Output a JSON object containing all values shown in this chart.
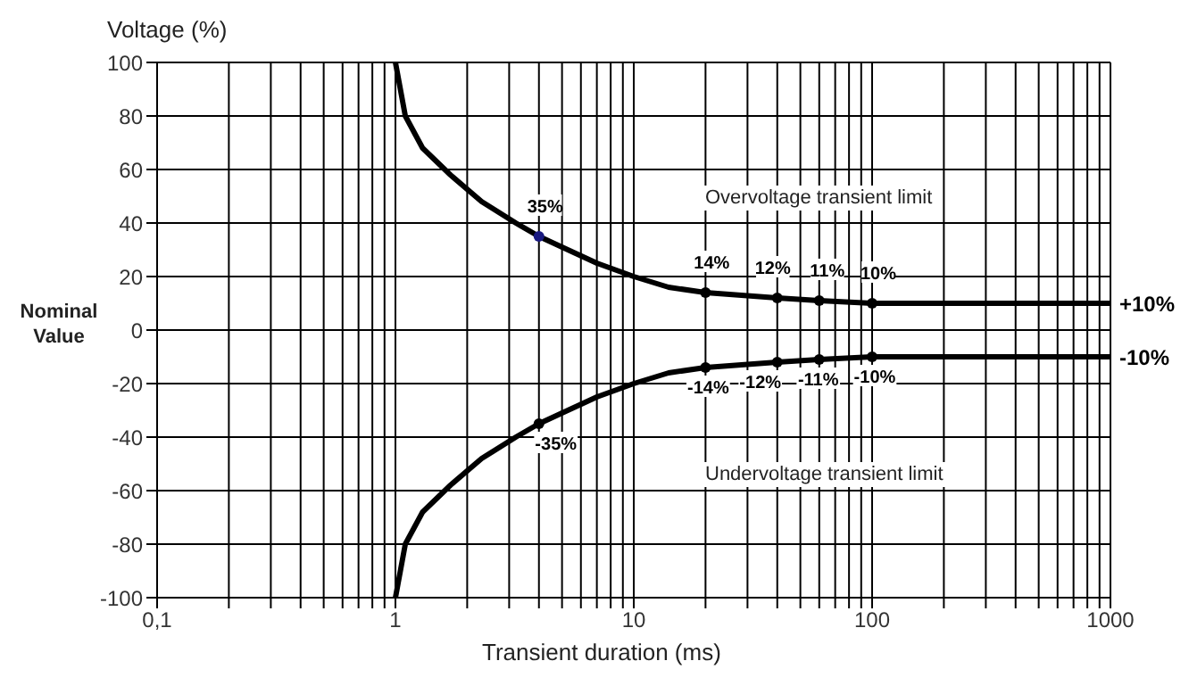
{
  "chart_data": {
    "type": "line",
    "ylabel": "Voltage (%)",
    "xlabel": "Transient duration (ms)",
    "log": "x",
    "grid": true,
    "legend": false,
    "xlim": [
      0.1,
      1000
    ],
    "ylim": [
      -100,
      100
    ],
    "xticks": [
      {
        "value": 0.1,
        "label": "0,1"
      },
      {
        "value": 0.2,
        "label": null
      },
      {
        "value": 0.3,
        "label": null
      },
      {
        "value": 0.4,
        "label": null
      },
      {
        "value": 0.5,
        "label": null
      },
      {
        "value": 0.6,
        "label": null
      },
      {
        "value": 0.7,
        "label": null
      },
      {
        "value": 0.8,
        "label": null
      },
      {
        "value": 0.9,
        "label": null
      },
      1,
      {
        "value": 2,
        "label": null
      },
      {
        "value": 3,
        "label": null
      },
      {
        "value": 4,
        "label": null
      },
      {
        "value": 5,
        "label": null
      },
      {
        "value": 6,
        "label": null
      },
      {
        "value": 7,
        "label": null
      },
      {
        "value": 8,
        "label": null
      },
      {
        "value": 9,
        "label": null
      },
      10,
      {
        "value": 20,
        "label": null
      },
      {
        "value": 30,
        "label": null
      },
      {
        "value": 40,
        "label": null
      },
      {
        "value": 50,
        "label": null
      },
      {
        "value": 60,
        "label": null
      },
      {
        "value": 70,
        "label": null
      },
      {
        "value": 80,
        "label": null
      },
      {
        "value": 90,
        "label": null
      },
      100,
      {
        "value": 200,
        "label": null
      },
      {
        "value": 300,
        "label": null
      },
      {
        "value": 400,
        "label": null
      },
      {
        "value": 500,
        "label": null
      },
      {
        "value": 600,
        "label": null
      },
      {
        "value": 700,
        "label": null
      },
      {
        "value": 800,
        "label": null
      },
      {
        "value": 900,
        "label": null
      },
      1000
    ],
    "yticks": [
      -100,
      -80,
      -60,
      -40,
      -20,
      0,
      20,
      40,
      60,
      80,
      100
    ],
    "series": [
      {
        "type": "line",
        "marker": "none",
        "color": "#000000",
        "x": [
          1,
          1.1,
          1.3,
          1.7,
          2.3,
          3.2,
          4,
          5,
          7,
          10,
          14,
          20,
          40,
          60,
          100,
          1000
        ],
        "values": [
          100,
          80,
          68,
          58,
          48,
          40,
          35,
          31,
          25,
          20,
          16,
          14,
          12,
          11,
          10,
          10
        ]
      },
      {
        "type": "line",
        "marker": "none",
        "color": "#000000",
        "x": [
          1,
          1.1,
          1.3,
          1.7,
          2.3,
          3.2,
          4,
          5,
          7,
          10,
          14,
          20,
          40,
          60,
          100,
          1000
        ],
        "values": [
          -100,
          -80,
          -68,
          -58,
          -48,
          -40,
          -35,
          -31,
          -25,
          -20,
          -16,
          -14,
          -12,
          -11,
          -10,
          -10
        ]
      },
      {
        "type": "scatter",
        "marker": "circle",
        "color": "#000000",
        "colors": [
          "#1a1a80",
          "#000000",
          "#000000",
          "#000000",
          "#000000"
        ],
        "x": [
          4,
          20,
          40,
          60,
          100
        ],
        "values": [
          35,
          14,
          12,
          11,
          10
        ],
        "value_labels": [
          "35%",
          "14%",
          "12%",
          "11%",
          "10%"
        ]
      },
      {
        "type": "scatter",
        "marker": "circle",
        "color": "#000000",
        "x": [
          4,
          20,
          40,
          60,
          100
        ],
        "values": [
          -35,
          -14,
          -12,
          -11,
          -10
        ],
        "value_labels": [
          "-35%",
          "-14%",
          "-12%",
          "-11%",
          "-10%"
        ]
      }
    ],
    "annotations": [
      "Nominal Value",
      "Overvoltage transient limit",
      "Undervoltage transient limit",
      {
        "text": "+10%",
        "x": 1000,
        "y": 10
      },
      {
        "text": "-10%",
        "x": 1000,
        "y": -10
      }
    ]
  }
}
